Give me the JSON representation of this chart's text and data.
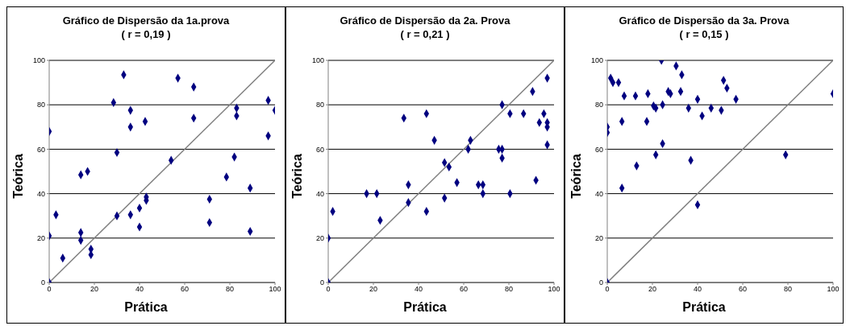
{
  "chart_data": [
    {
      "type": "scatter",
      "title": "Gráfico de Dispersão da 1a.prova",
      "subtitle": "( r = 0,19 )",
      "xlabel": "Prática",
      "ylabel": "Teórica",
      "xlim": [
        0,
        100
      ],
      "ylim": [
        0,
        100
      ],
      "xticks": [
        0,
        20,
        40,
        60,
        80,
        100
      ],
      "yticks": [
        0,
        20,
        40,
        60,
        80,
        100
      ],
      "grid": "y",
      "series": [
        {
          "marker": "diamond",
          "color": "#000080",
          "x": [
            0,
            0,
            0,
            3,
            6,
            14,
            14,
            14,
            17,
            18.5,
            18.5,
            28.5,
            30,
            30,
            33,
            36,
            36,
            36,
            40,
            40,
            42.5,
            43,
            43,
            54,
            57,
            64,
            64,
            71,
            71,
            78.5,
            82,
            83,
            83,
            89,
            89,
            97,
            97,
            100
          ],
          "values": [
            68,
            21,
            0,
            30.5,
            11,
            48.5,
            22.5,
            19,
            50,
            15,
            12.5,
            81,
            58.5,
            30,
            93.5,
            77.5,
            70,
            30.5,
            33.5,
            25,
            72.5,
            38.5,
            37,
            55,
            92,
            88,
            74,
            37.5,
            27,
            47.5,
            56.5,
            78.5,
            75,
            42.5,
            23,
            82,
            66,
            77.5
          ]
        },
        {
          "type": "line",
          "color": "#808080",
          "x": [
            0,
            100
          ],
          "values": [
            0,
            100
          ]
        }
      ]
    },
    {
      "type": "scatter",
      "title": "Gráfico de Dispersão da 2a. Prova",
      "subtitle": "( r = 0,21 )",
      "xlabel": "Prática",
      "ylabel": "Teórica",
      "xlim": [
        0,
        100
      ],
      "ylim": [
        0,
        100
      ],
      "xticks": [
        0,
        20,
        40,
        60,
        80,
        100
      ],
      "yticks": [
        0,
        20,
        40,
        60,
        80,
        100
      ],
      "grid": "y",
      "series": [
        {
          "marker": "diamond",
          "color": "#000080",
          "x": [
            0,
            0,
            2,
            17,
            21.5,
            23,
            33.5,
            35.5,
            35.5,
            43.5,
            43.5,
            47,
            51.5,
            51.5,
            53.5,
            57,
            62,
            63,
            66.5,
            68.5,
            68.5,
            75.5,
            77,
            77,
            77,
            80.5,
            80.5,
            86.5,
            90.5,
            92,
            93.5,
            95.5,
            97,
            97,
            97,
            97
          ],
          "values": [
            0,
            20,
            32,
            40,
            40,
            28,
            74,
            44,
            36,
            76,
            32,
            64,
            54,
            38,
            52,
            45,
            60,
            64,
            44,
            44,
            40,
            60,
            60,
            56,
            80,
            76,
            40,
            76,
            86,
            46,
            72,
            76,
            72,
            70,
            62,
            92
          ]
        },
        {
          "type": "line",
          "color": "#808080",
          "x": [
            0,
            100
          ],
          "values": [
            0,
            100
          ]
        }
      ]
    },
    {
      "type": "scatter",
      "title": "Gráfico de Dispersão da 3a. Prova",
      "subtitle": "( r = 0,15 )",
      "xlabel": "Prática",
      "ylabel": "Teórica",
      "xlim": [
        0,
        100
      ],
      "ylim": [
        0,
        100
      ],
      "xticks": [
        0,
        20,
        40,
        60,
        80,
        100
      ],
      "yticks": [
        0,
        20,
        40,
        60,
        80,
        100
      ],
      "grid": "y",
      "series": [
        {
          "marker": "diamond",
          "color": "#000080",
          "x": [
            0,
            0,
            0,
            1.5,
            2.5,
            5,
            6.5,
            6.5,
            7.5,
            12.5,
            13,
            17.5,
            18,
            20.5,
            21.5,
            21.5,
            24,
            24.5,
            24.5,
            27,
            28,
            30.5,
            32.5,
            33,
            36,
            37,
            40,
            40,
            42,
            46,
            50.5,
            51.5,
            53,
            57,
            79,
            100
          ],
          "values": [
            0,
            70,
            67.5,
            92,
            90,
            90,
            72.5,
            42.5,
            84,
            84,
            52.5,
            72.5,
            85,
            79.5,
            78.5,
            57.5,
            100,
            80,
            62.5,
            86,
            85,
            97.5,
            86,
            93.5,
            78.5,
            55,
            82.5,
            35,
            75,
            78.5,
            77.5,
            91,
            87.5,
            82.5,
            57.5,
            85
          ]
        },
        {
          "type": "line",
          "color": "#808080",
          "x": [
            0,
            100
          ],
          "values": [
            0,
            100
          ]
        }
      ]
    }
  ]
}
